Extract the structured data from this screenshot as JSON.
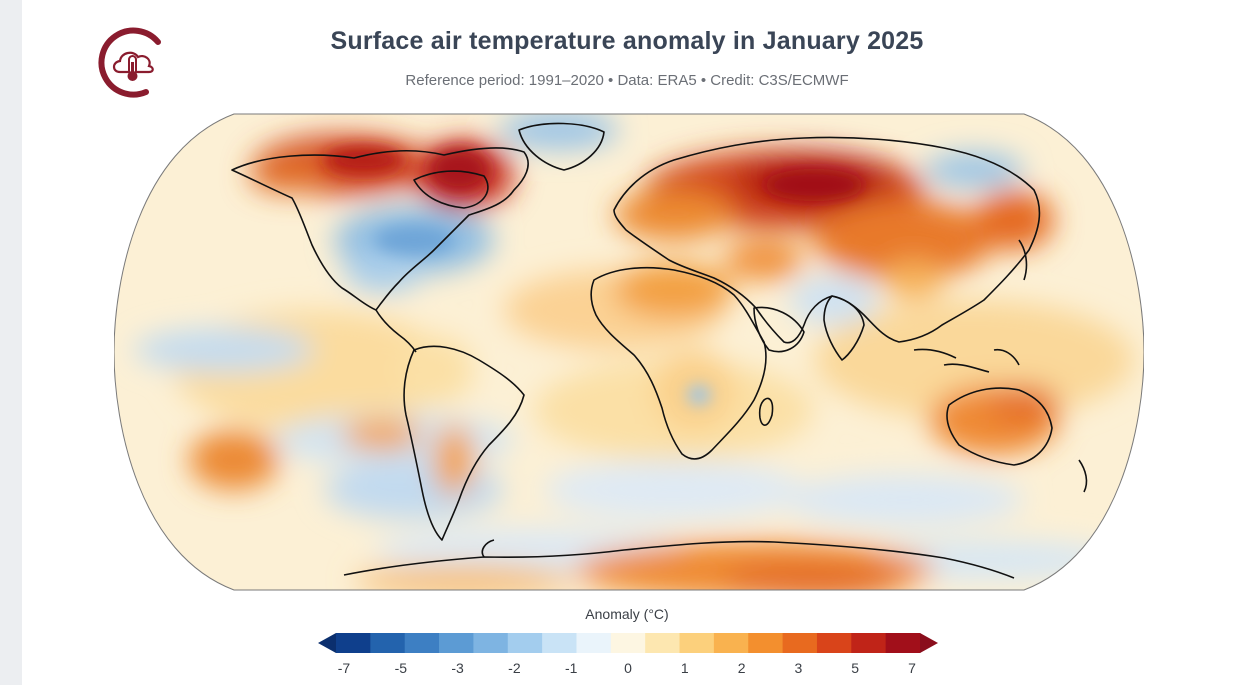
{
  "header": {
    "title": "Surface air temperature anomaly in January 2025",
    "subtitle": "Reference period: 1991–2020 • Data: ERA5 • Credit: C3S/ECMWF",
    "logo_icon": "thermometer-cloud-icon"
  },
  "legend": {
    "title": "Anomaly (°C)",
    "ticks": [
      "-7",
      "-5",
      "-3",
      "-2",
      "-1",
      "0",
      "1",
      "2",
      "3",
      "5",
      "7"
    ],
    "colors": [
      "#0f3f8c",
      "#2363ad",
      "#3d7fc3",
      "#5c9bd4",
      "#7eb4e2",
      "#a3cdee",
      "#c9e3f6",
      "#eaf4fb",
      "#fdf6e2",
      "#fde7b0",
      "#fcd07c",
      "#f9b24f",
      "#f38f2e",
      "#e86a1f",
      "#d9441a",
      "#c02418",
      "#a10f1a"
    ],
    "end_arrow_low": "#0b2f6e",
    "end_arrow_high": "#8a0e1c"
  },
  "colors": {
    "title_text": "#3a4556",
    "logo_color": "#8a1c2e",
    "ocean_neutral": "#fdf5e3"
  }
}
